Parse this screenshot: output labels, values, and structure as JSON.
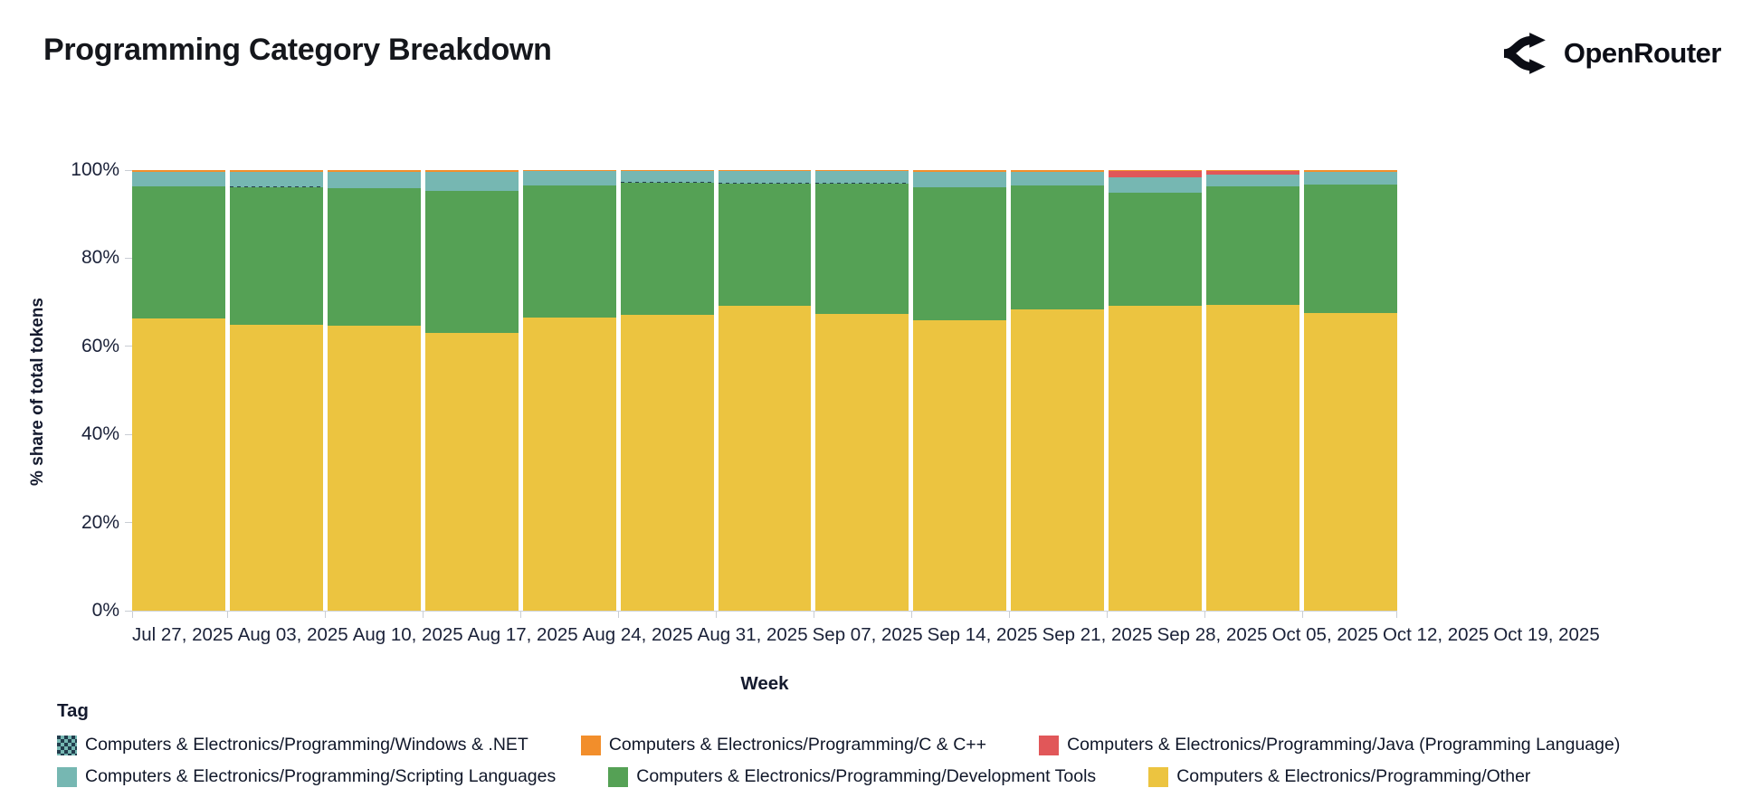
{
  "header": {
    "title": "Programming Category Breakdown",
    "brand": "OpenRouter"
  },
  "chart_data": {
    "type": "bar",
    "subtype": "stacked-100-percent",
    "title": "Programming Category Breakdown",
    "xlabel": "Week",
    "ylabel": "% share of total tokens",
    "ylim": [
      0,
      100
    ],
    "grid": false,
    "legend_title": "Tag",
    "legend_position": "bottom",
    "yticks": [
      {
        "value": 0,
        "label": "0%"
      },
      {
        "value": 20,
        "label": "20%"
      },
      {
        "value": 40,
        "label": "40%"
      },
      {
        "value": 60,
        "label": "60%"
      },
      {
        "value": 80,
        "label": "80%"
      },
      {
        "value": 100,
        "label": "100%"
      }
    ],
    "categories": [
      "Jul 27, 2025",
      "Aug 03, 2025",
      "Aug 10, 2025",
      "Aug 17, 2025",
      "Aug 24, 2025",
      "Aug 31, 2025",
      "Sep 07, 2025",
      "Sep 14, 2025",
      "Sep 21, 2025",
      "Sep 28, 2025",
      "Oct 05, 2025",
      "Oct 12, 2025",
      "Oct 19, 2025"
    ],
    "series": [
      {
        "key": "windows-dotnet",
        "name": "Computers & Electronics/Programming/Windows & .NET",
        "color": "#223d4d",
        "pattern": "check",
        "stack": 2,
        "values": [
          0.08,
          0.08,
          0.08,
          0.08,
          0.08,
          0.08,
          0.08,
          0.08,
          0.08,
          0.08,
          0.08,
          0.08,
          0.08
        ]
      },
      {
        "key": "c-cpp",
        "name": "Computers & Electronics/Programming/C & C++",
        "color": "#f28e2b",
        "stack": 5,
        "values": [
          0.3,
          0.35,
          0.35,
          0.35,
          0.3,
          0.3,
          0.25,
          0.25,
          0.3,
          0.3,
          0.2,
          0.2,
          0.3
        ]
      },
      {
        "key": "java",
        "name": "Computers & Electronics/Programming/Java (Programming Language)",
        "color": "#e15759",
        "stack": 4,
        "values": [
          0,
          0,
          0,
          0,
          0,
          0,
          0,
          0,
          0,
          0,
          1.4,
          0.9,
          0
        ]
      },
      {
        "key": "scripting-languages",
        "name": "Computers & Electronics/Programming/Scripting Languages",
        "color": "#76b7b2",
        "stack": 3,
        "values": [
          3.3,
          3.4,
          3.7,
          4.3,
          3.1,
          2.4,
          2.7,
          2.7,
          3.6,
          3.1,
          3.5,
          2.5,
          2.9
        ]
      },
      {
        "key": "development-tools",
        "name": "Computers & Electronics/Programming/Development Tools",
        "color": "#55a155",
        "stack": 1,
        "values": [
          29.9,
          31.2,
          31.2,
          32.2,
          29.9,
          30.0,
          27.8,
          29.5,
          30.0,
          28.1,
          25.7,
          27.0,
          29.2
        ]
      },
      {
        "key": "other",
        "name": "Computers & Electronics/Programming/Other",
        "color": "#ecc440",
        "stack": 0,
        "values": [
          66.4,
          65.0,
          64.7,
          63.1,
          66.6,
          67.2,
          69.1,
          67.4,
          66.0,
          68.4,
          69.1,
          69.4,
          67.6
        ]
      }
    ]
  }
}
